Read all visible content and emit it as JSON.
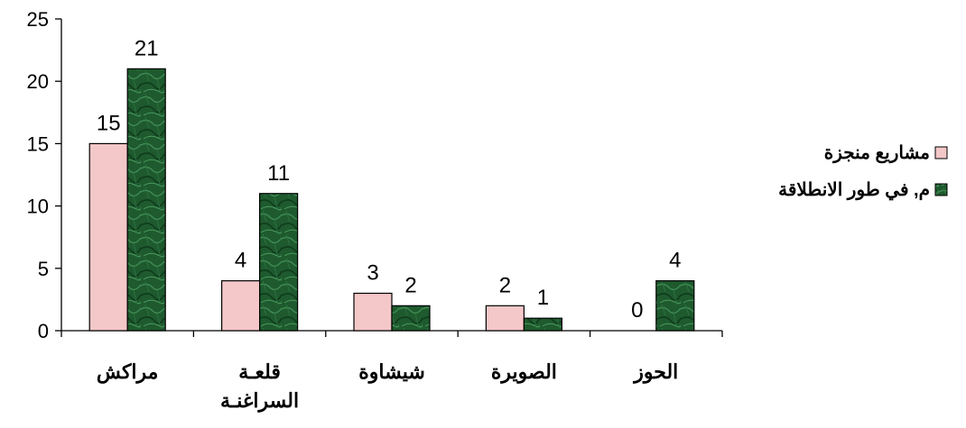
{
  "chart_data": {
    "type": "bar",
    "categories": [
      [
        "مراكش"
      ],
      [
        "قلعـة",
        "السراغنـة"
      ],
      [
        "شيشاوة"
      ],
      [
        "الصويرة"
      ],
      [
        "الحوز"
      ]
    ],
    "series": [
      {
        "name": "مشاريع منجزة",
        "values": [
          15,
          4,
          3,
          2,
          0
        ],
        "color": "#f4c7c8",
        "pattern": "plain"
      },
      {
        "name": "م, في طور الانطلاقة",
        "values": [
          21,
          11,
          2,
          1,
          4
        ],
        "color": "#1e5a2e",
        "pattern": "marble"
      }
    ],
    "ylim": [
      0,
      25
    ],
    "yticks": [
      0,
      5,
      10,
      15,
      20,
      25
    ],
    "grid": false,
    "legend": "right"
  }
}
